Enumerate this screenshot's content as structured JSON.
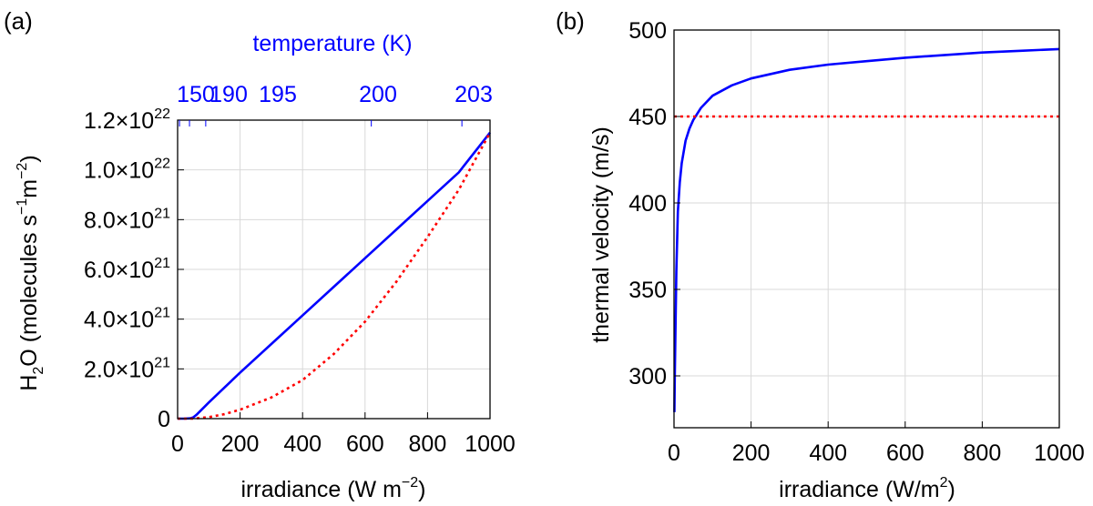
{
  "chart_data": [
    {
      "type": "line",
      "panel_label": "(a)",
      "xlabel": "irradiance (W m",
      "xlabel_sup": "−2",
      "xlabel_end": ")",
      "ylabel_pre": "H",
      "ylabel_sub": "2",
      "ylabel_mid": "O (molecules s",
      "ylabel_sup1": "−1",
      "ylabel_m": "m",
      "ylabel_sup2": "−2",
      "ylabel_end": ")",
      "xlim": [
        0,
        1000
      ],
      "ylim": [
        0,
        1.2e+22
      ],
      "x_ticks": [
        0,
        200,
        400,
        600,
        800,
        1000
      ],
      "x_tick_labels": [
        "0",
        "200",
        "400",
        "600",
        "800",
        "1000"
      ],
      "y_ticks": [
        0,
        2e+21,
        4e+21,
        6e+21,
        8e+21,
        1e+22,
        1.2e+22
      ],
      "y_tick_labels": [
        {
          "mant": "0",
          "exp": ""
        },
        {
          "mant": "2.0×10",
          "exp": "21"
        },
        {
          "mant": "4.0×10",
          "exp": "21"
        },
        {
          "mant": "6.0×10",
          "exp": "21"
        },
        {
          "mant": "8.0×10",
          "exp": "21"
        },
        {
          "mant": "1.0×10",
          "exp": "22"
        },
        {
          "mant": "1.2×10",
          "exp": "22"
        }
      ],
      "top_axis": {
        "label": "temperature (K)",
        "ticks": [
          {
            "x": 6,
            "label": "150"
          },
          {
            "x": 38,
            "label": "190"
          },
          {
            "x": 90,
            "label": "195"
          },
          {
            "x": 620,
            "label": "200"
          },
          {
            "x": 910,
            "label": "203"
          }
        ]
      },
      "series": [
        {
          "name": "blue-solid",
          "color": "#0000ff",
          "style": "solid",
          "x": [
            0,
            20,
            40,
            50,
            60,
            80,
            100,
            150,
            200,
            300,
            400,
            500,
            600,
            700,
            800,
            900,
            1000
          ],
          "y": [
            0,
            0,
            1e+19,
            5e+19,
            1.5e+20,
            4e+20,
            6.5e+20,
            1.25e+21,
            1.85e+21,
            3e+21,
            4.15e+21,
            5.3e+21,
            6.45e+21,
            7.6e+21,
            8.75e+21,
            9.9e+21,
            1.15e+22
          ]
        },
        {
          "name": "red-dotted",
          "color": "#ff0000",
          "style": "dotted",
          "x": [
            0,
            50,
            100,
            150,
            200,
            300,
            400,
            500,
            600,
            700,
            800,
            900,
            1000
          ],
          "y": [
            0,
            0,
            6e+19,
            1.8e+20,
            3.6e+20,
            8.5e+20,
            1.55e+21,
            2.6e+21,
            3.9e+21,
            5.5e+21,
            7.3e+21,
            9.2e+21,
            1.15e+22
          ]
        }
      ],
      "colors": {
        "axis_accent": "#0000ff"
      }
    },
    {
      "type": "line",
      "panel_label": "(b)",
      "xlabel": "irradiance (W/m",
      "xlabel_sup": "2",
      "xlabel_end": ")",
      "ylabel": "thermal velocity (m/s)",
      "xlim": [
        0,
        1000
      ],
      "ylim": [
        270,
        500
      ],
      "x_ticks": [
        0,
        200,
        400,
        600,
        800,
        1000
      ],
      "x_tick_labels": [
        "0",
        "200",
        "400",
        "600",
        "800",
        "1000"
      ],
      "y_ticks": [
        300,
        350,
        400,
        450,
        500
      ],
      "y_tick_labels": [
        "300",
        "350",
        "400",
        "450",
        "500"
      ],
      "series": [
        {
          "name": "blue-solid",
          "color": "#0000ff",
          "style": "solid",
          "x": [
            1,
            2,
            4,
            6,
            10,
            15,
            20,
            30,
            40,
            50,
            70,
            100,
            150,
            200,
            300,
            400,
            500,
            600,
            700,
            800,
            900,
            1000
          ],
          "y": [
            279,
            300,
            330,
            360,
            395,
            412,
            423,
            436,
            443,
            448,
            455,
            462,
            468,
            472,
            477,
            480,
            482,
            484,
            485.5,
            487,
            488,
            489
          ]
        },
        {
          "name": "red-dotted",
          "color": "#ff0000",
          "style": "dotted",
          "x": [
            0,
            1000
          ],
          "y": [
            450,
            450
          ]
        }
      ]
    }
  ]
}
